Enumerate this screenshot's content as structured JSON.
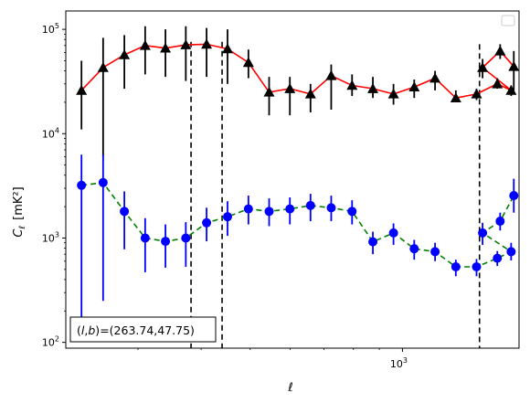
{
  "chart_data": {
    "type": "scatter",
    "xlabel": "ℓ",
    "ylabel_main": "C",
    "ylabel_sub": "ℓ",
    "ylabel_unit": "[mK²]",
    "xscale": "log",
    "yscale": "log",
    "xlim": [
      216,
      1700
    ],
    "ylim": [
      88,
      150000
    ],
    "x_ticks": [
      {
        "value": 1000,
        "base": "10",
        "exp": "3"
      }
    ],
    "y_ticks": [
      {
        "value": 100,
        "base": "10",
        "exp": "2"
      },
      {
        "value": 1000,
        "base": "10",
        "exp": "3"
      },
      {
        "value": 10000,
        "base": "10",
        "exp": "4"
      },
      {
        "value": 100000,
        "base": "10",
        "exp": "5"
      }
    ],
    "vlines": [
      382,
      440,
      1420
    ],
    "vline_spans": [
      [
        88,
        76000
      ],
      [
        88,
        76000
      ],
      [
        88,
        72000
      ]
    ],
    "legend": "top-right",
    "annotation": "(l,b)=(263.74,47.75)",
    "annotation_parts": {
      "open": "(",
      "l": "l",
      "comma": ",",
      "b": "b",
      "close": ")",
      "value": "=(263.74,47.75)"
    },
    "series": [
      {
        "color": "#ff0000",
        "linestyle": "solid",
        "marker": "triangle",
        "marker_color": "#000000",
        "errcolor": "#000000",
        "x": [
          232,
          256,
          282,
          310,
          340,
          373,
          410,
          451,
          496,
          545,
          599,
          658,
          723,
          795,
          874,
          960,
          1055,
          1160,
          1275,
          1401,
          1540,
          1640
        ],
        "y": [
          26000,
          43000,
          57000,
          70000,
          66000,
          71000,
          72000,
          65000,
          48000,
          25000,
          27000,
          24000,
          36000,
          29000,
          27000,
          24000,
          28000,
          34000,
          22000,
          24000,
          30000,
          26000
        ],
        "err_low": [
          11000,
          6000,
          27000,
          37000,
          35000,
          32000,
          35000,
          30000,
          34000,
          15000,
          15000,
          16000,
          17000,
          23000,
          22000,
          19000,
          22000,
          26000,
          20000,
          21000,
          27000,
          23000
        ],
        "err_high": [
          50000,
          83000,
          88000,
          107000,
          100000,
          107000,
          103000,
          100000,
          64000,
          35000,
          35000,
          30000,
          46000,
          37000,
          35000,
          30000,
          33000,
          40000,
          26000,
          27000,
          34000,
          29000
        ]
      },
      {
        "color": "#008000",
        "linestyle": "dashed",
        "marker": "circle",
        "marker_color": "#0000ff",
        "errcolor": "#0000ff",
        "x": [
          232,
          256,
          282,
          310,
          340,
          373,
          410,
          451,
          496,
          545,
          599,
          658,
          723,
          795,
          874,
          960,
          1055,
          1160,
          1275,
          1401,
          1540,
          1640
        ],
        "y": [
          3200,
          3400,
          1800,
          1000,
          930,
          1000,
          1400,
          1600,
          1900,
          1800,
          1900,
          2050,
          1950,
          1800,
          920,
          1120,
          790,
          740,
          530,
          530,
          640,
          740
        ],
        "err_low": [
          160,
          250,
          780,
          470,
          520,
          530,
          930,
          1050,
          1350,
          1300,
          1350,
          1450,
          1450,
          1350,
          700,
          860,
          620,
          600,
          430,
          430,
          540,
          610
        ],
        "err_high": [
          6300,
          6300,
          2800,
          1550,
          1350,
          1420,
          1950,
          2250,
          2550,
          2400,
          2450,
          2650,
          2550,
          2300,
          1150,
          1380,
          960,
          900,
          620,
          630,
          750,
          900
        ]
      }
    ],
    "extra_points": {
      "triangles": {
        "x": [
          1440,
          1560,
          1660
        ],
        "y": [
          43000,
          62000,
          44000
        ],
        "err_low": [
          34000,
          52000,
          26000
        ],
        "err_high": [
          52000,
          72000,
          62000
        ]
      },
      "circles": {
        "x": [
          1440,
          1560,
          1660
        ],
        "y": [
          1120,
          1450,
          2550
        ],
        "err_low": [
          860,
          1180,
          1750
        ],
        "err_high": [
          1400,
          1750,
          3700
        ]
      }
    }
  }
}
